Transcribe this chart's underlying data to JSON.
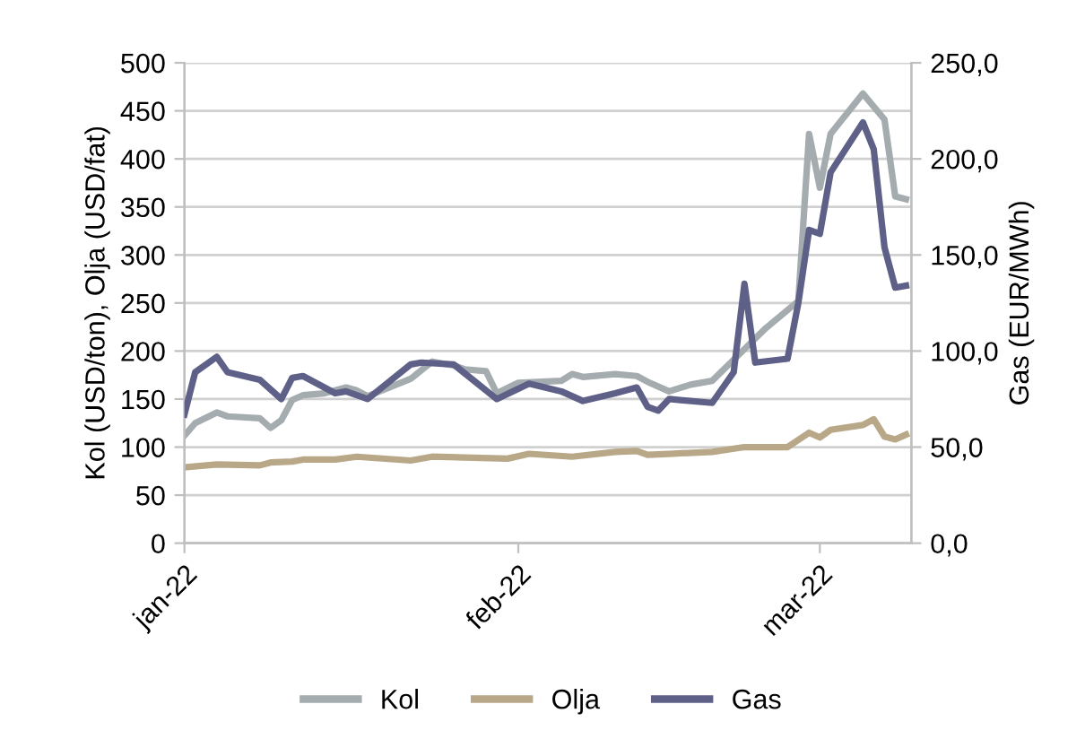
{
  "chart_data": {
    "type": "line",
    "xlabel": null,
    "ylabel": "Kol (USD/ton), Olja (USD/fat)",
    "y2label": "Gas (EUR/MWh)",
    "xlim": [
      "2022-01-01",
      "2022-03-09T12:00"
    ],
    "xticks": [
      {
        "value": "2022-01-01",
        "label": "jan-22"
      },
      {
        "value": "2022-02-01",
        "label": "feb-22"
      },
      {
        "value": "2022-03-01",
        "label": "mar-22"
      }
    ],
    "ylim": [
      0,
      500
    ],
    "yticks": [
      0,
      50,
      100,
      150,
      200,
      250,
      300,
      350,
      400,
      450,
      500
    ],
    "y2lim": [
      0,
      250
    ],
    "y2ticks": [
      {
        "value": 0,
        "label": "0,0"
      },
      {
        "value": 50,
        "label": "50,0"
      },
      {
        "value": 100,
        "label": "100,0"
      },
      {
        "value": 150,
        "label": "150,0"
      },
      {
        "value": 200,
        "label": "200,0"
      },
      {
        "value": 250,
        "label": "250,0"
      }
    ],
    "grid": "y",
    "legend": "bottom",
    "marker": "none",
    "line_style": "solid",
    "series": [
      {
        "name": "Kol",
        "color": "#a5acaf",
        "x": [
          "2022-01-01",
          "2022-01-02",
          "2022-01-04",
          "2022-01-05",
          "2022-01-08",
          "2022-01-09",
          "2022-01-10",
          "2022-01-11",
          "2022-01-12",
          "2022-01-14",
          "2022-01-16",
          "2022-01-17",
          "2022-01-18",
          "2022-01-20",
          "2022-01-22",
          "2022-01-24",
          "2022-01-26",
          "2022-01-27",
          "2022-01-29",
          "2022-01-30",
          "2022-02-01",
          "2022-02-05",
          "2022-02-06",
          "2022-02-07",
          "2022-02-10",
          "2022-02-12",
          "2022-02-13",
          "2022-02-15",
          "2022-02-17",
          "2022-02-19",
          "2022-02-22",
          "2022-02-24",
          "2022-02-27",
          "2022-02-28",
          "2022-03-01",
          "2022-03-02",
          "2022-03-05",
          "2022-03-07",
          "2022-03-08",
          "2022-03-09"
        ],
        "values": [
          112,
          125,
          136,
          132,
          130,
          120,
          128,
          149,
          154,
          156,
          162,
          159,
          153,
          162,
          171,
          189,
          185,
          181,
          179,
          156,
          167,
          169,
          176,
          173,
          176,
          174,
          168,
          158,
          165,
          169,
          202,
          224,
          252,
          426,
          370,
          426,
          468,
          441,
          361,
          358
        ]
      },
      {
        "name": "Olja",
        "color": "#b8a888",
        "x": [
          "2022-01-01",
          "2022-01-04",
          "2022-01-08",
          "2022-01-09",
          "2022-01-11",
          "2022-01-12",
          "2022-01-15",
          "2022-01-17",
          "2022-01-22",
          "2022-01-24",
          "2022-01-31",
          "2022-02-02",
          "2022-02-06",
          "2022-02-10",
          "2022-02-12",
          "2022-02-13",
          "2022-02-15",
          "2022-02-19",
          "2022-02-22",
          "2022-02-26",
          "2022-02-28",
          "2022-03-01",
          "2022-03-02",
          "2022-03-05",
          "2022-03-06",
          "2022-03-07",
          "2022-03-08",
          "2022-03-09"
        ],
        "values": [
          79,
          82,
          81,
          84,
          85,
          87,
          87,
          90,
          86,
          90,
          88,
          93,
          90,
          95,
          96,
          92,
          93,
          95,
          100,
          100,
          115,
          110,
          118,
          123,
          129,
          111,
          108,
          113
        ]
      },
      {
        "name": "Gas",
        "color": "#5f6088",
        "axis": "y2",
        "x": [
          "2022-01-01",
          "2022-01-02",
          "2022-01-04",
          "2022-01-05",
          "2022-01-08",
          "2022-01-10",
          "2022-01-11",
          "2022-01-12",
          "2022-01-15",
          "2022-01-16",
          "2022-01-18",
          "2022-01-22",
          "2022-01-23",
          "2022-01-26",
          "2022-01-28",
          "2022-01-30",
          "2022-02-02",
          "2022-02-05",
          "2022-02-07",
          "2022-02-10",
          "2022-02-12",
          "2022-02-13",
          "2022-02-14",
          "2022-02-15",
          "2022-02-19",
          "2022-02-21",
          "2022-02-22",
          "2022-02-23",
          "2022-02-26",
          "2022-02-27",
          "2022-02-28",
          "2022-03-01",
          "2022-03-02",
          "2022-03-05",
          "2022-03-06",
          "2022-03-07",
          "2022-03-08",
          "2022-03-09"
        ],
        "values": [
          67,
          89,
          97,
          89,
          85,
          75,
          86,
          87,
          78,
          79,
          75,
          93,
          94,
          93,
          84,
          75,
          83,
          79,
          74,
          78,
          81,
          71,
          69,
          75,
          73,
          89,
          135,
          94,
          96,
          125,
          163,
          161,
          193,
          219,
          205,
          154,
          133,
          134
        ]
      }
    ]
  }
}
